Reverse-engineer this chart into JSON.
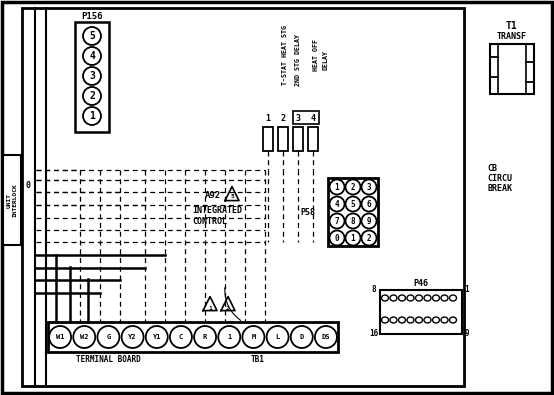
{
  "bg_color": "#ffffff",
  "p156_label": "P156",
  "p156_pins": [
    "5",
    "4",
    "3",
    "2",
    "1"
  ],
  "a92_label": "A92",
  "a92_sub": [
    "INTEGRATED",
    "CONTROL"
  ],
  "tstat_label": "T-STAT HEAT STG",
  "snd_stg_label": "2ND STG DELAY",
  "heat_off_label": [
    "HEAT OFF",
    "DELAY"
  ],
  "relay_nums": [
    "1",
    "2",
    "3",
    "4"
  ],
  "p58_label": "P58",
  "p58_pins": [
    [
      "3",
      "2",
      "1"
    ],
    [
      "6",
      "5",
      "4"
    ],
    [
      "9",
      "8",
      "7"
    ],
    [
      "2",
      "1",
      "0"
    ]
  ],
  "p46_label": "P46",
  "p46_corners": {
    "tl": "8",
    "tr": "1",
    "bl": "16",
    "br": "9"
  },
  "t1_label": "T1",
  "t1_sub": "TRANSF",
  "cb_lines": [
    "CB",
    "CIRCU",
    "BREAK"
  ],
  "terminal_labels": [
    "W1",
    "W2",
    "G",
    "Y2",
    "Y1",
    "C",
    "R",
    "1",
    "M",
    "L",
    "D",
    "DS"
  ],
  "terminal_board_label": "TERMINAL BOARD",
  "tb1_label": "TB1",
  "unit_interlock_label": "UNIT\nINTERLOCK",
  "tri1_label": "1",
  "tri2_label": "2"
}
